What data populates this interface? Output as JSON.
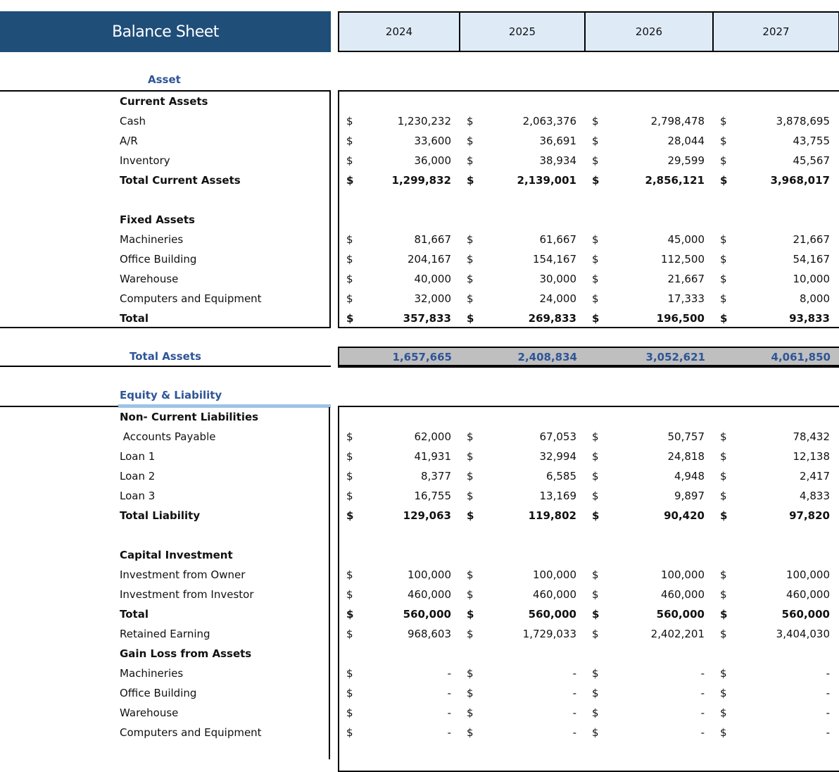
{
  "title": "Balance Sheet",
  "years": [
    "2024",
    "2025",
    "2026",
    "2027"
  ],
  "currency": "$",
  "asset_heading": "Asset",
  "total_assets": {
    "label": "Total Assets",
    "values": [
      "1,657,665",
      "2,408,834",
      "3,052,621",
      "4,061,850"
    ]
  },
  "equity_heading": "Equity & Liability",
  "asset_rows": [
    {
      "label": "Current Assets",
      "bold": true,
      "values": null
    },
    {
      "label": "Cash",
      "values": [
        "1,230,232",
        "2,063,376",
        "2,798,478",
        "3,878,695"
      ]
    },
    {
      "label": "A/R",
      "values": [
        "33,600",
        "36,691",
        "28,044",
        "43,755"
      ]
    },
    {
      "label": "Inventory",
      "values": [
        "36,000",
        "38,934",
        "29,599",
        "45,567"
      ]
    },
    {
      "label": "Total Current Assets",
      "bold": true,
      "values": [
        "1,299,832",
        "2,139,001",
        "2,856,121",
        "3,968,017"
      ]
    },
    {
      "label": "",
      "values": null
    },
    {
      "label": "Fixed Assets",
      "bold": true,
      "values": null
    },
    {
      "label": "Machineries",
      "values": [
        "81,667",
        "61,667",
        "45,000",
        "21,667"
      ]
    },
    {
      "label": "Office Building",
      "values": [
        "204,167",
        "154,167",
        "112,500",
        "54,167"
      ]
    },
    {
      "label": "Warehouse",
      "values": [
        "40,000",
        "30,000",
        "21,667",
        "10,000"
      ]
    },
    {
      "label": "Computers and Equipment",
      "values": [
        "32,000",
        "24,000",
        "17,333",
        "8,000"
      ]
    },
    {
      "label": "Total",
      "bold": true,
      "values": [
        "357,833",
        "269,833",
        "196,500",
        "93,833"
      ]
    }
  ],
  "equity_rows": [
    {
      "label": "Non- Current Liabilities",
      "bold": true,
      "values": null
    },
    {
      "label": " Accounts Payable",
      "values": [
        "62,000",
        "67,053",
        "50,757",
        "78,432"
      ]
    },
    {
      "label": "Loan 1",
      "values": [
        "41,931",
        "32,994",
        "24,818",
        "12,138"
      ]
    },
    {
      "label": "Loan 2",
      "values": [
        "8,377",
        "6,585",
        "4,948",
        "2,417"
      ]
    },
    {
      "label": "Loan 3",
      "values": [
        "16,755",
        "13,169",
        "9,897",
        "4,833"
      ]
    },
    {
      "label": "Total Liability",
      "bold": true,
      "values": [
        "129,063",
        "119,802",
        "90,420",
        "97,820"
      ]
    },
    {
      "label": "",
      "values": null
    },
    {
      "label": "Capital Investment",
      "bold": true,
      "values": null
    },
    {
      "label": "Investment from Owner",
      "values": [
        "100,000",
        "100,000",
        "100,000",
        "100,000"
      ]
    },
    {
      "label": "Investment from Investor",
      "values": [
        "460,000",
        "460,000",
        "460,000",
        "460,000"
      ]
    },
    {
      "label": "Total",
      "bold": true,
      "values": [
        "560,000",
        "560,000",
        "560,000",
        "560,000"
      ]
    },
    {
      "label": "Retained Earning",
      "values": [
        "968,603",
        "1,729,033",
        "2,402,201",
        "3,404,030"
      ]
    },
    {
      "label": "Gain Loss from Assets",
      "bold": true,
      "values": null
    },
    {
      "label": "Machineries",
      "values": [
        "-",
        "-",
        "-",
        "-"
      ]
    },
    {
      "label": "Office Building",
      "values": [
        "-",
        "-",
        "-",
        "-"
      ]
    },
    {
      "label": "Warehouse",
      "values": [
        "-",
        "-",
        "-",
        "-"
      ]
    },
    {
      "label": "Computers and Equipment",
      "values": [
        "-",
        "-",
        "-",
        "-"
      ]
    }
  ]
}
